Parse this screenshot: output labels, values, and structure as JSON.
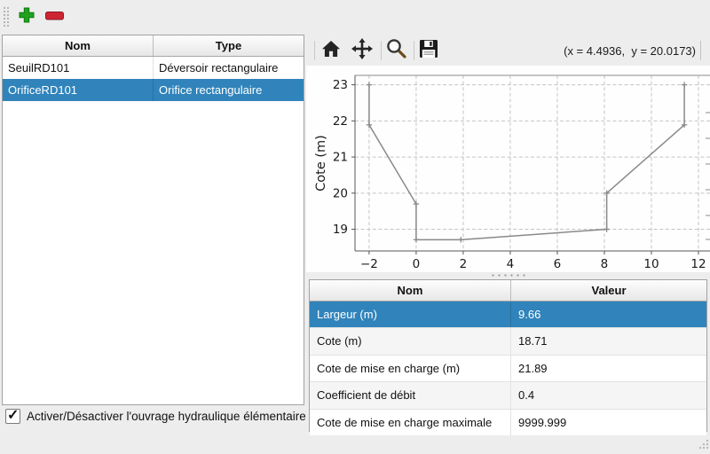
{
  "main_toolbar": {
    "add_button": {
      "icon": "plus-icon",
      "color": "#21a121"
    },
    "remove_button": {
      "icon": "minus-icon",
      "color": "#ce2533"
    }
  },
  "structures_table": {
    "headers": [
      "Nom",
      "Type"
    ],
    "rows": [
      {
        "nom": "SeuilRD101",
        "type": "Déversoir rectangulaire",
        "selected": false
      },
      {
        "nom": "OrificeRD101",
        "type": "Orifice rectangulaire",
        "selected": true
      }
    ]
  },
  "enable_checkbox": {
    "checked": true,
    "glyph": "✓",
    "label": "Activer/Désactiver l'ouvrage hydraulique élémentaire"
  },
  "plot_toolbar": {
    "icons": [
      "home-icon",
      "move-icon",
      "magnifier-icon",
      "floppy-icon"
    ],
    "coordinates": "(x = 4.4936,  y = 20.0173)"
  },
  "chart_data": {
    "type": "line",
    "title": "",
    "xlabel": "",
    "ylabel": "Cote (m)",
    "points": [
      [
        -2,
        23
      ],
      [
        -2,
        21.89
      ],
      [
        0,
        19.7
      ],
      [
        0,
        18.71
      ],
      [
        1.9,
        18.71
      ],
      [
        8.1,
        19
      ],
      [
        8.1,
        20
      ],
      [
        11.4,
        21.89
      ],
      [
        11.4,
        23
      ]
    ],
    "xticks": [
      -2,
      0,
      2,
      4,
      6,
      8,
      10,
      12
    ],
    "yticks": [
      19,
      20,
      21,
      22,
      23
    ],
    "xlim": [
      -2.6,
      12.49
    ],
    "ylim": [
      18.4,
      23.26
    ],
    "grid": true,
    "grid_style": "dashed",
    "line_color": "#898989",
    "marker": "plus"
  },
  "properties_table": {
    "headers": [
      "Nom",
      "Valeur"
    ],
    "rows": [
      {
        "nom": "Largeur (m)",
        "valeur": "9.66",
        "selected": true
      },
      {
        "nom": "Cote (m)",
        "valeur": "18.71",
        "selected": false
      },
      {
        "nom": "Cote de mise en charge (m)",
        "valeur": "21.89",
        "selected": false
      },
      {
        "nom": "Coefficient de débit",
        "valeur": "0.4",
        "selected": false
      },
      {
        "nom": "Cote de mise en charge maximale",
        "valeur": "9999.999",
        "selected": false
      }
    ]
  },
  "colors": {
    "selection": "#3084bb",
    "selection_text": "#ffffff"
  }
}
